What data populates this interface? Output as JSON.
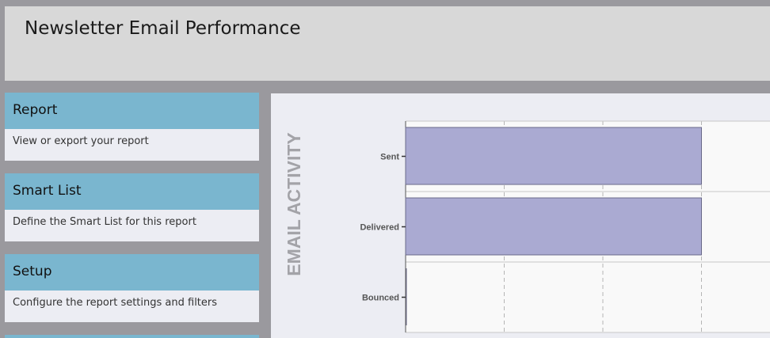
{
  "header": {
    "title": "Newsletter Email Performance"
  },
  "cards": [
    {
      "title": "Report",
      "description": "View or export your report"
    },
    {
      "title": "Smart List",
      "description": "Define the Smart List for this report"
    },
    {
      "title": "Setup",
      "description": "Configure the report settings and filters"
    }
  ],
  "colors": {
    "accent": "#7ab6cf",
    "bar_fill": "#aaaad2",
    "header_bg": "#d8d8d8",
    "page_bg": "#9a999e"
  },
  "chart_data": {
    "type": "bar",
    "orientation": "horizontal",
    "title": "",
    "ylabel": "EMAIL ACTIVITY",
    "categories": [
      "Sent",
      "Delivered",
      "Bounced"
    ],
    "values": [
      3,
      3,
      0
    ],
    "xlim": [
      0,
      5
    ],
    "grid": true
  }
}
